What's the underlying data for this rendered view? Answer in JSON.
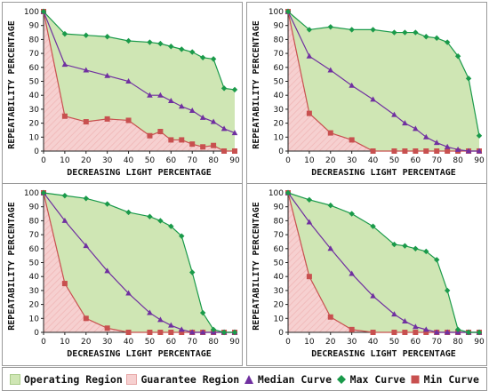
{
  "chart_data": [
    {
      "type": "line",
      "xlabel": "DECREASING LIGHT PERCENTAGE",
      "ylabel": "REPEATABILITY PERCENTAGE",
      "xlim": [
        0,
        90
      ],
      "ylim": [
        0,
        100
      ],
      "xticks": [
        0,
        10,
        20,
        30,
        40,
        50,
        60,
        70,
        80,
        90
      ],
      "yticks": [
        0,
        10,
        20,
        30,
        40,
        50,
        60,
        70,
        80,
        90,
        100
      ],
      "grid": false,
      "series": [
        {
          "name": "Max Curve",
          "x": [
            0,
            10,
            20,
            30,
            40,
            50,
            55,
            60,
            65,
            70,
            75,
            80,
            85,
            90
          ],
          "values": [
            100,
            84,
            83,
            82,
            79,
            78,
            77,
            75,
            73,
            71,
            67,
            66,
            45,
            44
          ]
        },
        {
          "name": "Median Curve",
          "x": [
            0,
            10,
            20,
            30,
            40,
            50,
            55,
            60,
            65,
            70,
            75,
            80,
            85,
            90
          ],
          "values": [
            100,
            62,
            58,
            54,
            50,
            40,
            40,
            36,
            32,
            29,
            24,
            21,
            16,
            13
          ]
        },
        {
          "name": "Min Curve",
          "x": [
            0,
            10,
            20,
            30,
            40,
            50,
            55,
            60,
            65,
            70,
            75,
            80,
            85,
            90
          ],
          "values": [
            100,
            25,
            21,
            23,
            22,
            11,
            14,
            8,
            8,
            5,
            3,
            4,
            0,
            0
          ]
        }
      ]
    },
    {
      "type": "line",
      "xlabel": "DECREASING LIGHT PERCENTAGE",
      "ylabel": "REPEATABILITY PERCENTAGE",
      "xlim": [
        0,
        90
      ],
      "ylim": [
        0,
        100
      ],
      "xticks": [
        0,
        10,
        20,
        30,
        40,
        50,
        60,
        70,
        80,
        90
      ],
      "yticks": [
        0,
        10,
        20,
        30,
        40,
        50,
        60,
        70,
        80,
        90,
        100
      ],
      "grid": false,
      "series": [
        {
          "name": "Max Curve",
          "x": [
            0,
            10,
            20,
            30,
            40,
            50,
            55,
            60,
            65,
            70,
            75,
            80,
            85,
            90
          ],
          "values": [
            100,
            87,
            89,
            87,
            87,
            85,
            85,
            85,
            82,
            81,
            78,
            68,
            52,
            11
          ]
        },
        {
          "name": "Median Curve",
          "x": [
            0,
            10,
            20,
            30,
            40,
            50,
            55,
            60,
            65,
            70,
            75,
            80,
            85,
            90
          ],
          "values": [
            100,
            68,
            58,
            47,
            37,
            26,
            20,
            16,
            10,
            6,
            3,
            1,
            0,
            0
          ]
        },
        {
          "name": "Min Curve",
          "x": [
            0,
            10,
            20,
            30,
            40,
            50,
            55,
            60,
            65,
            70,
            75,
            80,
            85,
            90
          ],
          "values": [
            100,
            27,
            13,
            8,
            0,
            0,
            0,
            0,
            0,
            0,
            0,
            0,
            0,
            0
          ]
        }
      ]
    },
    {
      "type": "line",
      "xlabel": "DECREASING LIGHT PERCENTAGE",
      "ylabel": "REPEATABILITY PERCENTAGE",
      "xlim": [
        0,
        90
      ],
      "ylim": [
        0,
        100
      ],
      "xticks": [
        0,
        10,
        20,
        30,
        40,
        50,
        60,
        70,
        80,
        90
      ],
      "yticks": [
        0,
        10,
        20,
        30,
        40,
        50,
        60,
        70,
        80,
        90,
        100
      ],
      "grid": false,
      "series": [
        {
          "name": "Max Curve",
          "x": [
            0,
            10,
            20,
            30,
            40,
            50,
            55,
            60,
            65,
            70,
            75,
            80,
            85,
            90
          ],
          "values": [
            100,
            98,
            96,
            92,
            86,
            83,
            80,
            76,
            69,
            43,
            14,
            2,
            0,
            0
          ]
        },
        {
          "name": "Median Curve",
          "x": [
            0,
            10,
            20,
            30,
            40,
            50,
            55,
            60,
            65,
            70,
            75,
            80,
            85,
            90
          ],
          "values": [
            100,
            80,
            62,
            44,
            28,
            14,
            9,
            5,
            2,
            0,
            0,
            0,
            0,
            0
          ]
        },
        {
          "name": "Min Curve",
          "x": [
            0,
            10,
            20,
            30,
            40,
            50,
            55,
            60,
            65,
            70,
            75,
            80,
            85,
            90
          ],
          "values": [
            100,
            35,
            10,
            3,
            0,
            0,
            0,
            0,
            0,
            0,
            0,
            0,
            0,
            0
          ]
        }
      ]
    },
    {
      "type": "line",
      "xlabel": "DECREASING LIGHT PERCENTAGE",
      "ylabel": "REPEATABILITY PERCENTAGE",
      "xlim": [
        0,
        90
      ],
      "ylim": [
        0,
        100
      ],
      "xticks": [
        0,
        10,
        20,
        30,
        40,
        50,
        60,
        70,
        80,
        90
      ],
      "yticks": [
        0,
        10,
        20,
        30,
        40,
        50,
        60,
        70,
        80,
        90,
        100
      ],
      "grid": false,
      "series": [
        {
          "name": "Max Curve",
          "x": [
            0,
            10,
            20,
            30,
            40,
            50,
            55,
            60,
            65,
            70,
            75,
            80,
            85,
            90
          ],
          "values": [
            100,
            95,
            91,
            85,
            76,
            63,
            62,
            60,
            58,
            52,
            30,
            2,
            0,
            0
          ]
        },
        {
          "name": "Median Curve",
          "x": [
            0,
            10,
            20,
            30,
            40,
            50,
            55,
            60,
            65,
            70,
            75,
            80,
            85,
            90
          ],
          "values": [
            100,
            79,
            60,
            42,
            26,
            13,
            8,
            4,
            2,
            0,
            0,
            0,
            0,
            0
          ]
        },
        {
          "name": "Min Curve",
          "x": [
            0,
            10,
            20,
            30,
            40,
            50,
            55,
            60,
            65,
            70,
            75,
            80,
            85,
            90
          ],
          "values": [
            100,
            40,
            11,
            2,
            0,
            0,
            0,
            0,
            0,
            0,
            0,
            0,
            0,
            0
          ]
        }
      ]
    }
  ],
  "legend": {
    "position": "bottom",
    "items": [
      {
        "label": "Operating Region",
        "kind": "area",
        "color": "#cfe6b4"
      },
      {
        "label": "Guarantee Region",
        "kind": "area",
        "color": "#f6d0d0"
      },
      {
        "label": "Median Curve",
        "kind": "triangle",
        "color": "#7030a0"
      },
      {
        "label": "Max Curve",
        "kind": "diamond",
        "color": "#1a9a4a"
      },
      {
        "label": "Min Curve",
        "kind": "square",
        "color": "#c8504f"
      }
    ]
  },
  "colors": {
    "operating_fill": "#cfe6b4",
    "guarantee_fill": "#f6d0d0",
    "guarantee_hatch": "#f0b7b7",
    "max": "#1a9a4a",
    "median": "#7030a0",
    "min": "#c8504f",
    "axis": "#222222"
  }
}
